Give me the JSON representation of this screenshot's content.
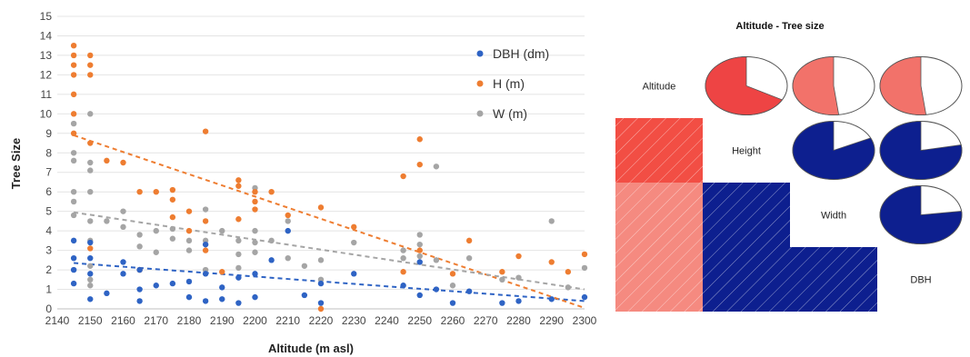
{
  "chart_data": [
    {
      "type": "scatter",
      "xlabel": "Altitude (m asl)",
      "ylabel": "Tree Size",
      "xlim": [
        2140,
        2300
      ],
      "ylim": [
        0,
        15
      ],
      "xticks": [
        "2140",
        "2150",
        "2160",
        "2170",
        "2180",
        "2190",
        "2200",
        "2210",
        "2220",
        "2230",
        "2240",
        "2250",
        "2260",
        "2270",
        "2280",
        "2290",
        "2300"
      ],
      "yticks": [
        "0",
        "1",
        "2",
        "3",
        "4",
        "5",
        "6",
        "7",
        "8",
        "9",
        "10",
        "11",
        "12",
        "13",
        "14",
        "15"
      ],
      "legend_position": "top-right",
      "series": [
        {
          "name": "DBH (dm)",
          "color": "#2e63c4",
          "trend": [
            [
              2145,
              2.35
            ],
            [
              2300,
              0.4
            ]
          ],
          "points": [
            [
              2145,
              1.3
            ],
            [
              2145,
              2.6
            ],
            [
              2145,
              3.5
            ],
            [
              2145,
              2.0
            ],
            [
              2150,
              0.5
            ],
            [
              2150,
              1.8
            ],
            [
              2150,
              2.6
            ],
            [
              2150,
              3.4
            ],
            [
              2155,
              0.8
            ],
            [
              2160,
              1.8
            ],
            [
              2160,
              2.4
            ],
            [
              2165,
              0.4
            ],
            [
              2165,
              1.0
            ],
            [
              2165,
              2.0
            ],
            [
              2170,
              1.2
            ],
            [
              2175,
              1.3
            ],
            [
              2180,
              0.6
            ],
            [
              2180,
              1.4
            ],
            [
              2185,
              0.4
            ],
            [
              2185,
              1.8
            ],
            [
              2185,
              3.3
            ],
            [
              2190,
              0.5
            ],
            [
              2190,
              1.1
            ],
            [
              2195,
              0.3
            ],
            [
              2195,
              1.6
            ],
            [
              2200,
              0.6
            ],
            [
              2200,
              1.8
            ],
            [
              2205,
              2.5
            ],
            [
              2210,
              4.0
            ],
            [
              2215,
              0.7
            ],
            [
              2220,
              0.3
            ],
            [
              2220,
              1.3
            ],
            [
              2230,
              1.8
            ],
            [
              2245,
              1.2
            ],
            [
              2250,
              0.7
            ],
            [
              2250,
              2.4
            ],
            [
              2255,
              1.0
            ],
            [
              2260,
              0.3
            ],
            [
              2265,
              0.9
            ],
            [
              2275,
              0.3
            ],
            [
              2280,
              0.4
            ],
            [
              2290,
              0.5
            ],
            [
              2300,
              0.6
            ]
          ]
        },
        {
          "name": "H (m)",
          "color": "#ee7d31",
          "trend": [
            [
              2145,
              8.9
            ],
            [
              2300,
              0.05
            ]
          ],
          "points": [
            [
              2145,
              13.5
            ],
            [
              2145,
              13.0
            ],
            [
              2145,
              12.5
            ],
            [
              2145,
              12.0
            ],
            [
              2145,
              11.0
            ],
            [
              2145,
              10.0
            ],
            [
              2145,
              9.0
            ],
            [
              2150,
              13.0
            ],
            [
              2150,
              12.5
            ],
            [
              2150,
              12.0
            ],
            [
              2150,
              8.5
            ],
            [
              2150,
              3.1
            ],
            [
              2155,
              7.6
            ],
            [
              2160,
              7.5
            ],
            [
              2165,
              6.0
            ],
            [
              2165,
              2.0
            ],
            [
              2170,
              6.0
            ],
            [
              2175,
              6.1
            ],
            [
              2175,
              5.6
            ],
            [
              2175,
              4.7
            ],
            [
              2180,
              5.0
            ],
            [
              2180,
              4.0
            ],
            [
              2185,
              9.1
            ],
            [
              2185,
              4.5
            ],
            [
              2185,
              3.0
            ],
            [
              2190,
              1.9
            ],
            [
              2195,
              6.6
            ],
            [
              2195,
              6.3
            ],
            [
              2195,
              4.6
            ],
            [
              2200,
              6.0
            ],
            [
              2200,
              5.5
            ],
            [
              2200,
              5.1
            ],
            [
              2205,
              6.0
            ],
            [
              2210,
              4.8
            ],
            [
              2220,
              5.2
            ],
            [
              2220,
              0.0
            ],
            [
              2230,
              4.2
            ],
            [
              2245,
              6.8
            ],
            [
              2245,
              1.9
            ],
            [
              2250,
              8.7
            ],
            [
              2250,
              7.4
            ],
            [
              2250,
              3.0
            ],
            [
              2260,
              1.8
            ],
            [
              2265,
              3.5
            ],
            [
              2275,
              1.9
            ],
            [
              2280,
              2.7
            ],
            [
              2290,
              2.4
            ],
            [
              2295,
              1.9
            ],
            [
              2300,
              2.8
            ]
          ]
        },
        {
          "name": "W (m)",
          "color": "#a5a5a5",
          "trend": [
            [
              2145,
              4.95
            ],
            [
              2300,
              1.0
            ]
          ],
          "points": [
            [
              2145,
              9.5
            ],
            [
              2145,
              8.0
            ],
            [
              2145,
              7.6
            ],
            [
              2145,
              6.0
            ],
            [
              2145,
              5.5
            ],
            [
              2145,
              4.8
            ],
            [
              2150,
              10.0
            ],
            [
              2150,
              7.5
            ],
            [
              2150,
              7.1
            ],
            [
              2150,
              6.0
            ],
            [
              2150,
              4.5
            ],
            [
              2150,
              3.5
            ],
            [
              2150,
              2.2
            ],
            [
              2150,
              1.5
            ],
            [
              2150,
              1.2
            ],
            [
              2155,
              4.5
            ],
            [
              2160,
              5.0
            ],
            [
              2160,
              4.2
            ],
            [
              2165,
              3.2
            ],
            [
              2165,
              3.8
            ],
            [
              2170,
              2.9
            ],
            [
              2170,
              4.0
            ],
            [
              2175,
              4.1
            ],
            [
              2175,
              3.6
            ],
            [
              2180,
              3.5
            ],
            [
              2180,
              3.0
            ],
            [
              2185,
              5.1
            ],
            [
              2185,
              3.5
            ],
            [
              2185,
              2.0
            ],
            [
              2190,
              4.0
            ],
            [
              2195,
              3.5
            ],
            [
              2195,
              2.8
            ],
            [
              2195,
              2.1
            ],
            [
              2200,
              6.2
            ],
            [
              2200,
              4.0
            ],
            [
              2200,
              3.4
            ],
            [
              2200,
              2.9
            ],
            [
              2205,
              3.5
            ],
            [
              2210,
              4.5
            ],
            [
              2210,
              2.6
            ],
            [
              2215,
              2.2
            ],
            [
              2220,
              2.5
            ],
            [
              2220,
              1.5
            ],
            [
              2230,
              3.4
            ],
            [
              2245,
              3.0
            ],
            [
              2245,
              2.6
            ],
            [
              2250,
              3.8
            ],
            [
              2250,
              3.3
            ],
            [
              2250,
              2.7
            ],
            [
              2255,
              7.3
            ],
            [
              2255,
              2.5
            ],
            [
              2260,
              1.2
            ],
            [
              2265,
              2.6
            ],
            [
              2275,
              1.5
            ],
            [
              2280,
              1.6
            ],
            [
              2290,
              4.5
            ],
            [
              2295,
              1.1
            ],
            [
              2300,
              2.1
            ]
          ]
        }
      ]
    },
    {
      "type": "heatmap",
      "title": "Altitude - Tree size",
      "variables": [
        "Altitude",
        "Height",
        "Width",
        "DBH"
      ],
      "upper_pies": [
        {
          "row": "Altitude",
          "col": "Height",
          "fraction": 0.67,
          "color": "#ee4444"
        },
        {
          "row": "Altitude",
          "col": "Width",
          "fraction": 0.52,
          "color": "#f2726a"
        },
        {
          "row": "Altitude",
          "col": "DBH",
          "fraction": 0.52,
          "color": "#f2726a"
        },
        {
          "row": "Height",
          "col": "Width",
          "fraction": 0.82,
          "color": "#0d1f8f"
        },
        {
          "row": "Height",
          "col": "DBH",
          "fraction": 0.78,
          "color": "#0d1f8f"
        },
        {
          "row": "Width",
          "col": "DBH",
          "fraction": 0.77,
          "color": "#0d1f8f"
        }
      ],
      "lower_cells": [
        {
          "row": "Height",
          "col": "Altitude",
          "color": "#f24e44"
        },
        {
          "row": "Width",
          "col": "Altitude",
          "color": "#f58a80"
        },
        {
          "row": "DBH",
          "col": "Altitude",
          "color": "#f58a80"
        },
        {
          "row": "Width",
          "col": "Height",
          "color": "#0d1f8f"
        },
        {
          "row": "DBH",
          "col": "Height",
          "color": "#0d1f8f"
        },
        {
          "row": "DBH",
          "col": "Width",
          "color": "#0d1f8f"
        }
      ]
    }
  ]
}
